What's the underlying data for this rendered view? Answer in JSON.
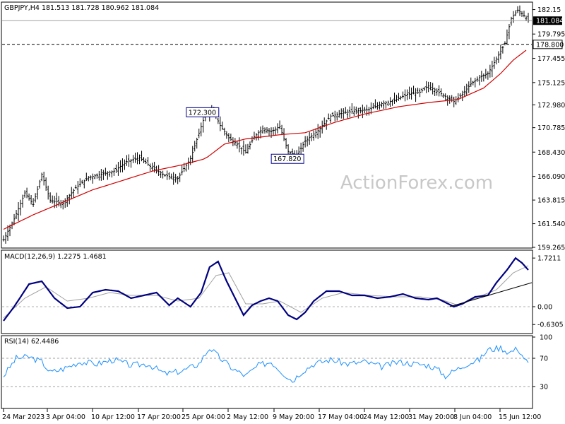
{
  "chart_data": [
    {
      "type": "candlestick",
      "title": "GBPJPY,H4  181.513 181.728 180.962 181.084",
      "watermark": "ActionForex.com",
      "ylim": [
        159.265,
        182.8
      ],
      "y_ticks": [
        "182.15",
        "179.795",
        "177.455",
        "175.125",
        "172.980",
        "170.785",
        "168.430",
        "166.090",
        "163.815",
        "161.540",
        "159.265"
      ],
      "price_labels": {
        "last": "181.084",
        "level": "178.800"
      },
      "last_price": 181.084,
      "horizontal_level": 178.8,
      "annotations": [
        {
          "text": "172.300",
          "value": 172.3
        },
        {
          "text": "167.820",
          "value": 167.82
        }
      ],
      "x_ticks": [
        "24 Mar 2023",
        "3 Apr 04:00",
        "10 Apr 12:00",
        "17 Apr 20:00",
        "25 Apr 04:00",
        "2 May 12:00",
        "9 May 20:00",
        "17 May 04:00",
        "24 May 12:00",
        "31 May 20:00",
        "8 Jun 04:00",
        "15 Jun 12:00"
      ],
      "price_path": [
        [
          0,
          160.0
        ],
        [
          5,
          162.0
        ],
        [
          10,
          164.5
        ],
        [
          14,
          163.4
        ],
        [
          18,
          166.3
        ],
        [
          22,
          163.8
        ],
        [
          28,
          163.5
        ],
        [
          34,
          165.0
        ],
        [
          40,
          166.0
        ],
        [
          46,
          166.3
        ],
        [
          52,
          166.6
        ],
        [
          58,
          167.5
        ],
        [
          64,
          167.9
        ],
        [
          70,
          166.9
        ],
        [
          76,
          166.2
        ],
        [
          82,
          165.9
        ],
        [
          88,
          167.8
        ],
        [
          95,
          172.1
        ],
        [
          99,
          172.3
        ],
        [
          102,
          171.0
        ],
        [
          106,
          169.8
        ],
        [
          110,
          169.2
        ],
        [
          114,
          168.4
        ],
        [
          118,
          169.9
        ],
        [
          122,
          170.7
        ],
        [
          126,
          170.4
        ],
        [
          130,
          170.9
        ],
        [
          134,
          168.5
        ],
        [
          138,
          168.1
        ],
        [
          142,
          169.5
        ],
        [
          148,
          170.5
        ],
        [
          154,
          171.9
        ],
        [
          160,
          172.2
        ],
        [
          166,
          172.4
        ],
        [
          172,
          172.5
        ],
        [
          178,
          173.1
        ],
        [
          184,
          173.4
        ],
        [
          190,
          174.0
        ],
        [
          196,
          174.2
        ],
        [
          200,
          174.8
        ],
        [
          204,
          174.3
        ],
        [
          208,
          173.8
        ],
        [
          212,
          173.3
        ],
        [
          216,
          174.0
        ],
        [
          220,
          175.0
        ],
        [
          224,
          175.6
        ],
        [
          228,
          176.0
        ],
        [
          232,
          177.4
        ],
        [
          236,
          178.9
        ],
        [
          239,
          181.3
        ],
        [
          242,
          182.1
        ],
        [
          245,
          181.6
        ],
        [
          247,
          181.08
        ]
      ],
      "ema_path": [
        [
          0,
          161.0
        ],
        [
          14,
          162.4
        ],
        [
          28,
          163.6
        ],
        [
          42,
          164.8
        ],
        [
          56,
          165.7
        ],
        [
          70,
          166.6
        ],
        [
          84,
          167.2
        ],
        [
          95,
          167.8
        ],
        [
          104,
          169.2
        ],
        [
          114,
          169.7
        ],
        [
          130,
          170.1
        ],
        [
          142,
          170.3
        ],
        [
          156,
          171.3
        ],
        [
          170,
          172.1
        ],
        [
          186,
          172.8
        ],
        [
          200,
          173.2
        ],
        [
          214,
          173.5
        ],
        [
          226,
          174.6
        ],
        [
          234,
          176.0
        ],
        [
          240,
          177.3
        ],
        [
          247,
          178.4
        ]
      ],
      "n_bars": 248
    },
    {
      "type": "line",
      "title": "MACD(12,26,9) 1.2275 1.4681",
      "ylim": [
        -0.9,
        1.95
      ],
      "y_ticks": [
        "1.7211",
        "0.00",
        "-0.6305"
      ],
      "y_values": [
        1.7211,
        0.0,
        -0.6305
      ],
      "macd_path": [
        [
          0,
          -0.5
        ],
        [
          5,
          0.0
        ],
        [
          12,
          0.8
        ],
        [
          18,
          0.9
        ],
        [
          24,
          0.3
        ],
        [
          30,
          -0.05
        ],
        [
          36,
          0.0
        ],
        [
          42,
          0.5
        ],
        [
          48,
          0.6
        ],
        [
          54,
          0.55
        ],
        [
          60,
          0.3
        ],
        [
          66,
          0.4
        ],
        [
          72,
          0.5
        ],
        [
          78,
          0.05
        ],
        [
          82,
          0.3
        ],
        [
          88,
          0.0
        ],
        [
          93,
          0.5
        ],
        [
          97,
          1.4
        ],
        [
          101,
          1.6
        ],
        [
          105,
          0.9
        ],
        [
          109,
          0.3
        ],
        [
          113,
          -0.3
        ],
        [
          117,
          0.05
        ],
        [
          121,
          0.2
        ],
        [
          125,
          0.3
        ],
        [
          129,
          0.2
        ],
        [
          134,
          -0.3
        ],
        [
          138,
          -0.45
        ],
        [
          142,
          -0.2
        ],
        [
          146,
          0.2
        ],
        [
          152,
          0.55
        ],
        [
          158,
          0.55
        ],
        [
          164,
          0.4
        ],
        [
          170,
          0.4
        ],
        [
          176,
          0.3
        ],
        [
          182,
          0.35
        ],
        [
          188,
          0.45
        ],
        [
          194,
          0.3
        ],
        [
          200,
          0.25
        ],
        [
          204,
          0.3
        ],
        [
          208,
          0.15
        ],
        [
          212,
          0.0
        ],
        [
          216,
          0.1
        ],
        [
          222,
          0.35
        ],
        [
          228,
          0.4
        ],
        [
          232,
          0.85
        ],
        [
          237,
          1.3
        ],
        [
          241,
          1.72
        ],
        [
          244,
          1.55
        ],
        [
          247,
          1.3
        ]
      ],
      "signal_path": [
        [
          0,
          -0.4
        ],
        [
          10,
          0.3
        ],
        [
          20,
          0.7
        ],
        [
          30,
          0.2
        ],
        [
          40,
          0.3
        ],
        [
          50,
          0.5
        ],
        [
          60,
          0.4
        ],
        [
          72,
          0.4
        ],
        [
          82,
          0.2
        ],
        [
          92,
          0.3
        ],
        [
          100,
          1.1
        ],
        [
          106,
          1.2
        ],
        [
          114,
          0.1
        ],
        [
          122,
          0.1
        ],
        [
          130,
          0.2
        ],
        [
          140,
          -0.2
        ],
        [
          150,
          0.3
        ],
        [
          160,
          0.5
        ],
        [
          172,
          0.4
        ],
        [
          184,
          0.35
        ],
        [
          196,
          0.35
        ],
        [
          206,
          0.25
        ],
        [
          214,
          0.05
        ],
        [
          222,
          0.3
        ],
        [
          232,
          0.6
        ],
        [
          240,
          1.2
        ],
        [
          247,
          1.45
        ]
      ],
      "trendline": [
        [
          210,
          0.0
        ],
        [
          250,
          0.85
        ]
      ]
    },
    {
      "type": "line",
      "title": "RSI(14) 62.4486",
      "ylim": [
        0,
        100
      ],
      "y_ticks": [
        "100",
        "70",
        "30",
        "0"
      ],
      "y_values": [
        100,
        70,
        30,
        0
      ],
      "rsi_path": [
        [
          0,
          45
        ],
        [
          6,
          70
        ],
        [
          12,
          72
        ],
        [
          18,
          65
        ],
        [
          22,
          50
        ],
        [
          28,
          55
        ],
        [
          36,
          65
        ],
        [
          44,
          62
        ],
        [
          52,
          68
        ],
        [
          60,
          60
        ],
        [
          68,
          62
        ],
        [
          76,
          48
        ],
        [
          84,
          52
        ],
        [
          92,
          62
        ],
        [
          97,
          85
        ],
        [
          102,
          70
        ],
        [
          108,
          55
        ],
        [
          114,
          45
        ],
        [
          120,
          60
        ],
        [
          126,
          65
        ],
        [
          132,
          48
        ],
        [
          136,
          38
        ],
        [
          140,
          50
        ],
        [
          146,
          62
        ],
        [
          154,
          68
        ],
        [
          162,
          62
        ],
        [
          170,
          65
        ],
        [
          178,
          58
        ],
        [
          186,
          65
        ],
        [
          194,
          62
        ],
        [
          200,
          60
        ],
        [
          204,
          55
        ],
        [
          208,
          45
        ],
        [
          212,
          52
        ],
        [
          218,
          62
        ],
        [
          224,
          68
        ],
        [
          228,
          82
        ],
        [
          234,
          85
        ],
        [
          238,
          78
        ],
        [
          242,
          84
        ],
        [
          244,
          75
        ],
        [
          247,
          62
        ]
      ]
    }
  ]
}
